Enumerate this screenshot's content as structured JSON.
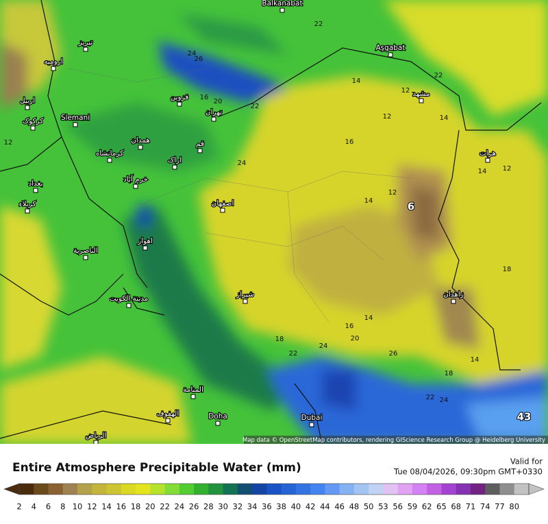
{
  "title": "Entire Atmosphere Precipitable Water (mm)",
  "valid_label": "Valid for",
  "valid_time": "Tue 08/04/2026, 09:30pm GMT+0330",
  "attribution": "Map data © OpenStreetMap contributors, rendering GIScience Research Group @ Heidelberg University",
  "cities": [
    "Balkanabat",
    "تبریز",
    "ارومیه",
    "Aşgabat",
    "اربیل",
    "مشهد",
    "کرکوک",
    "Slemani",
    "قزوین",
    "تهران",
    "همدان",
    "کرمانشاه",
    "قم",
    "اراک",
    "هرات",
    "خرم آباد",
    "بغداد",
    "کربلاء",
    "اصفهان",
    "اهواز",
    "الناصرية",
    "زاهدان",
    "مدينة الكويت",
    "شیراز",
    "المنامة",
    "الهفوف",
    "Doha",
    "Dubai",
    "الرياض"
  ],
  "contour_labels": [
    "22",
    "24",
    "26",
    "22",
    "14",
    "12",
    "16",
    "20",
    "22",
    "12",
    "14",
    "12",
    "16",
    "24",
    "14",
    "12",
    "14",
    "12",
    "6",
    "18",
    "14",
    "16",
    "20",
    "18",
    "22",
    "24",
    "26",
    "14",
    "18",
    "22",
    "24",
    "43"
  ],
  "colorbar": {
    "labels": [
      "2",
      "4",
      "6",
      "8",
      "10",
      "12",
      "14",
      "16",
      "18",
      "20",
      "22",
      "24",
      "26",
      "28",
      "30",
      "32",
      "34",
      "36",
      "38",
      "40",
      "42",
      "44",
      "46",
      "48",
      "50",
      "53",
      "56",
      "59",
      "62",
      "65",
      "68",
      "71",
      "74",
      "77",
      "80"
    ],
    "colors": [
      "#4a2c0c",
      "#6b4a1c",
      "#8a6232",
      "#a08252",
      "#b4a24a",
      "#c4b43c",
      "#ccc432",
      "#dad822",
      "#e4e41e",
      "#b6e22c",
      "#84dc38",
      "#52cc30",
      "#34b030",
      "#22923e",
      "#127252",
      "#124e72",
      "#1444a4",
      "#1a54c4",
      "#2464d4",
      "#3474e2",
      "#4484f0",
      "#6498f2",
      "#84b2f2",
      "#a2c4f2",
      "#c2d2f4",
      "#e2c2f2",
      "#e2a2f2",
      "#d282f2",
      "#c262e2",
      "#a442d2",
      "#8432b2",
      "#722282",
      "#5e5e5e",
      "#8e8e8e",
      "#c2c2c2"
    ]
  }
}
